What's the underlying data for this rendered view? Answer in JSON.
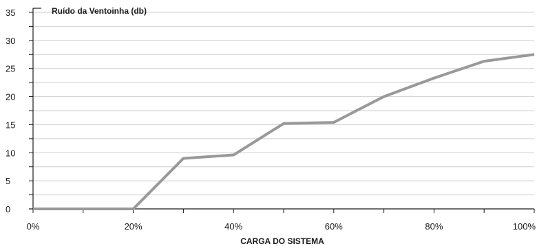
{
  "chart_data": {
    "type": "line",
    "title": "",
    "series_label": "Ruído da Ventoinha (db)",
    "xlabel": "CARGA DO SISTEMA",
    "ylabel": "",
    "x": [
      0,
      10,
      20,
      30,
      40,
      50,
      60,
      70,
      80,
      90,
      100
    ],
    "x_unit": "%",
    "x_tick_labels": [
      "0%",
      "20%",
      "40%",
      "60%",
      "80%",
      "100%"
    ],
    "y_tick_labels": [
      "0",
      "5",
      "10",
      "15",
      "20",
      "25",
      "30",
      "35"
    ],
    "xlim": [
      0,
      100
    ],
    "ylim": [
      0,
      35
    ],
    "grid": true,
    "series": [
      {
        "name": "Ruído da Ventoinha (db)",
        "values": [
          0,
          0,
          0,
          9,
          9.6,
          15.2,
          15.4,
          20,
          23.3,
          26.3,
          27.5
        ],
        "color": "#999999"
      }
    ]
  }
}
